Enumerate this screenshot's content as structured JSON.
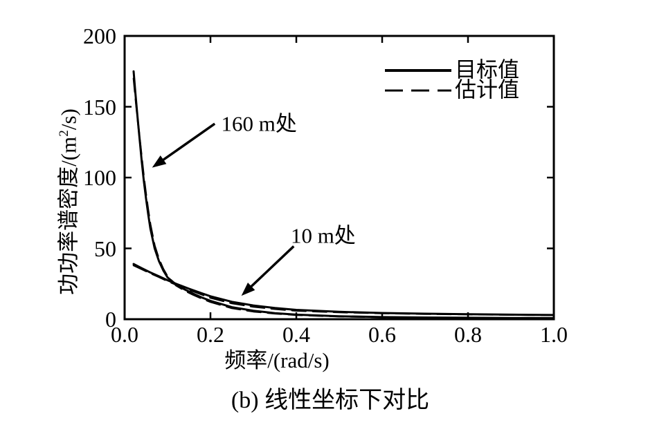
{
  "figure": {
    "caption": "(b) 线性坐标下对比"
  },
  "chart_data": {
    "type": "line",
    "title": "",
    "xlabel": "频率/(rad/s)",
    "ylabel": "功功率谱密度/(m²/s)",
    "ylabel_parts": {
      "prefix": "功功率谱密度/(m",
      "sup": "2",
      "suffix": "/s)"
    },
    "xlim": [
      0.0,
      1.0
    ],
    "ylim": [
      0,
      200
    ],
    "x_ticks": [
      0.0,
      0.2,
      0.4,
      0.6,
      0.8,
      1.0
    ],
    "x_tick_labels": [
      "0.0",
      "0.2",
      "0.4",
      "0.6",
      "0.8",
      "1.0"
    ],
    "y_ticks": [
      0,
      50,
      100,
      150,
      200
    ],
    "y_tick_labels": [
      "0",
      "50",
      "100",
      "150",
      "200"
    ],
    "grid": false,
    "colors": {
      "line": "#000000",
      "background": "#ffffff"
    },
    "legend": {
      "position": "top-right-inside",
      "entries": [
        {
          "label": "目标值",
          "style": "solid"
        },
        {
          "label": "估计值",
          "style": "dashed"
        }
      ]
    },
    "series": [
      {
        "name": "160m-target",
        "legend": "目标值",
        "style": "solid",
        "points": [
          [
            0.021,
            175
          ],
          [
            0.025,
            160
          ],
          [
            0.03,
            143
          ],
          [
            0.035,
            127
          ],
          [
            0.04,
            111
          ],
          [
            0.045,
            97
          ],
          [
            0.05,
            85
          ],
          [
            0.055,
            74
          ],
          [
            0.06,
            64
          ],
          [
            0.07,
            50
          ],
          [
            0.08,
            41
          ],
          [
            0.09,
            34.5
          ],
          [
            0.1,
            29.5
          ],
          [
            0.12,
            24.5
          ],
          [
            0.14,
            21
          ],
          [
            0.16,
            18
          ],
          [
            0.18,
            15.3
          ],
          [
            0.2,
            13
          ],
          [
            0.25,
            8.5
          ],
          [
            0.3,
            6
          ],
          [
            0.35,
            4.3
          ],
          [
            0.4,
            3.2
          ],
          [
            0.5,
            2.1
          ],
          [
            0.6,
            1.5
          ],
          [
            0.7,
            1.2
          ],
          [
            0.8,
            1.0
          ],
          [
            0.9,
            0.9
          ],
          [
            1.0,
            0.8
          ]
        ]
      },
      {
        "name": "160m-estimate",
        "legend": "估计值",
        "style": "dashed",
        "points": [
          [
            0.021,
            170
          ],
          [
            0.025,
            157
          ],
          [
            0.03,
            142
          ],
          [
            0.035,
            128
          ],
          [
            0.04,
            114
          ],
          [
            0.045,
            100
          ],
          [
            0.05,
            88
          ],
          [
            0.055,
            77
          ],
          [
            0.06,
            67
          ],
          [
            0.07,
            52
          ],
          [
            0.08,
            42.5
          ],
          [
            0.09,
            35.5
          ],
          [
            0.1,
            30.2
          ],
          [
            0.12,
            23.8
          ],
          [
            0.14,
            20.2
          ],
          [
            0.16,
            17.2
          ],
          [
            0.18,
            14.6
          ],
          [
            0.2,
            12.2
          ],
          [
            0.25,
            7.8
          ],
          [
            0.3,
            5.4
          ],
          [
            0.35,
            4.0
          ],
          [
            0.4,
            3.0
          ],
          [
            0.5,
            1.9
          ],
          [
            0.6,
            1.4
          ],
          [
            0.8,
            0.9
          ],
          [
            1.0,
            0.7
          ]
        ]
      },
      {
        "name": "10m-target",
        "legend": "目标值",
        "style": "solid",
        "points": [
          [
            0.021,
            39
          ],
          [
            0.04,
            36
          ],
          [
            0.06,
            33
          ],
          [
            0.08,
            30.3
          ],
          [
            0.1,
            27.5
          ],
          [
            0.12,
            25
          ],
          [
            0.15,
            21.5
          ],
          [
            0.18,
            18.3
          ],
          [
            0.2,
            16.2
          ],
          [
            0.25,
            12.3
          ],
          [
            0.3,
            9.7
          ],
          [
            0.35,
            7.9
          ],
          [
            0.4,
            6.6
          ],
          [
            0.5,
            5.2
          ],
          [
            0.6,
            4.4
          ],
          [
            0.7,
            3.9
          ],
          [
            0.8,
            3.5
          ],
          [
            0.9,
            3.2
          ],
          [
            1.0,
            3.0
          ]
        ]
      },
      {
        "name": "10m-estimate",
        "legend": "估计值",
        "style": "dashed",
        "points": [
          [
            0.021,
            38
          ],
          [
            0.04,
            35.3
          ],
          [
            0.06,
            32.4
          ],
          [
            0.08,
            29.8
          ],
          [
            0.1,
            26.9
          ],
          [
            0.12,
            24.4
          ],
          [
            0.15,
            20.8
          ],
          [
            0.18,
            17.4
          ],
          [
            0.2,
            15.1
          ],
          [
            0.25,
            11.2
          ],
          [
            0.3,
            8.8
          ],
          [
            0.35,
            7.2
          ],
          [
            0.4,
            6.0
          ],
          [
            0.5,
            4.9
          ],
          [
            0.6,
            4.2
          ],
          [
            0.7,
            3.7
          ],
          [
            0.8,
            3.4
          ],
          [
            0.9,
            3.1
          ],
          [
            1.0,
            2.9
          ]
        ]
      }
    ],
    "annotations": [
      {
        "label": "160 m处",
        "text_xy": [
          0.225,
          139.5
        ],
        "arrow_from": [
          0.21,
          138
        ],
        "arrow_to": [
          0.064,
          107
        ]
      },
      {
        "label": "10 m处",
        "text_xy": [
          0.387,
          60.5
        ],
        "arrow_from": [
          0.394,
          51.5
        ],
        "arrow_to": [
          0.272,
          16.5
        ]
      }
    ]
  }
}
